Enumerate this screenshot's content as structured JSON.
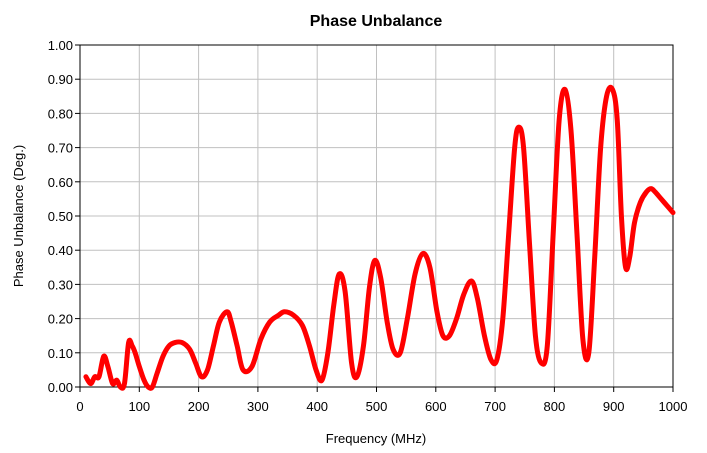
{
  "chart_data": {
    "type": "line",
    "title": "Phase Unbalance",
    "xlabel": "Frequency (MHz)",
    "ylabel": "Phase Unbalance (Deg.)",
    "xlim": [
      0,
      1000
    ],
    "ylim": [
      0,
      1.0
    ],
    "x_ticks": [
      "0",
      "100",
      "200",
      "300",
      "400",
      "500",
      "600",
      "700",
      "800",
      "900",
      "1000"
    ],
    "y_ticks": [
      "0.00",
      "0.10",
      "0.20",
      "0.30",
      "0.40",
      "0.50",
      "0.60",
      "0.70",
      "0.80",
      "0.90",
      "1.00"
    ],
    "grid": true,
    "legend": "none",
    "series_color": "#ff0000",
    "series": [
      {
        "name": "",
        "x": [
          10,
          18,
          25,
          32,
          40,
          47,
          55,
          62,
          68,
          75,
          82,
          88,
          93,
          100,
          108,
          115,
          122,
          130,
          140,
          150,
          160,
          172,
          185,
          195,
          205,
          215,
          225,
          235,
          248,
          255,
          265,
          275,
          290,
          305,
          320,
          335,
          345,
          360,
          375,
          387,
          398,
          408,
          418,
          428,
          437,
          447,
          458,
          467,
          478,
          488,
          497,
          507,
          518,
          528,
          540,
          552,
          565,
          578,
          590,
          602,
          612,
          623,
          635,
          647,
          660,
          670,
          682,
          693,
          703,
          713,
          723,
          733,
          740,
          748,
          758,
          768,
          778,
          788,
          798,
          808,
          818,
          828,
          838,
          848,
          858,
          868,
          878,
          888,
          898,
          906,
          913,
          920,
          927,
          935,
          945,
          955,
          963,
          970,
          980,
          990,
          1000
        ],
        "y": [
          0.03,
          0.01,
          0.03,
          0.03,
          0.09,
          0.06,
          0.01,
          0.02,
          0.0,
          0.01,
          0.13,
          0.12,
          0.1,
          0.06,
          0.02,
          0.0,
          0.0,
          0.04,
          0.09,
          0.12,
          0.13,
          0.13,
          0.11,
          0.07,
          0.03,
          0.05,
          0.12,
          0.19,
          0.22,
          0.19,
          0.12,
          0.05,
          0.06,
          0.14,
          0.19,
          0.21,
          0.22,
          0.21,
          0.18,
          0.12,
          0.05,
          0.02,
          0.1,
          0.24,
          0.33,
          0.28,
          0.07,
          0.03,
          0.12,
          0.29,
          0.37,
          0.32,
          0.19,
          0.11,
          0.1,
          0.2,
          0.33,
          0.39,
          0.35,
          0.22,
          0.15,
          0.15,
          0.2,
          0.27,
          0.31,
          0.26,
          0.15,
          0.08,
          0.08,
          0.2,
          0.45,
          0.7,
          0.76,
          0.7,
          0.42,
          0.15,
          0.07,
          0.12,
          0.45,
          0.78,
          0.87,
          0.75,
          0.45,
          0.14,
          0.1,
          0.38,
          0.7,
          0.85,
          0.87,
          0.78,
          0.5,
          0.35,
          0.38,
          0.48,
          0.54,
          0.57,
          0.58,
          0.57,
          0.55,
          0.53,
          0.51
        ]
      }
    ]
  }
}
